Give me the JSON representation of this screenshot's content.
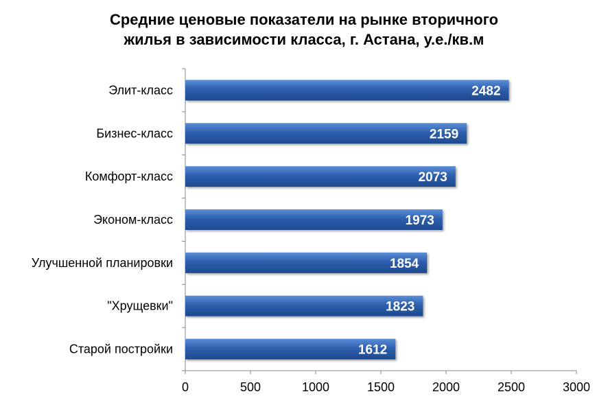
{
  "chart_data": {
    "type": "bar",
    "orientation": "horizontal",
    "title_lines": [
      "Средние ценовые показатели на рынке вторичного",
      "жилья в зависимости класса, г. Астана, у.е./кв.м"
    ],
    "categories": [
      "Элит-класс",
      "Бизнес-класс",
      "Комфорт-класс",
      "Эконом-класс",
      "Улучшенной планировки",
      "\"Хрущевки\"",
      "Старой постройки"
    ],
    "values": [
      2482,
      2159,
      2073,
      1973,
      1854,
      1823,
      1612
    ],
    "data_labels": [
      "2482",
      "2159",
      "2073",
      "1973",
      "1854",
      "1823",
      "1612"
    ],
    "xlim": [
      0,
      3000
    ],
    "x_ticks": [
      0,
      500,
      1000,
      1500,
      2000,
      2500,
      3000
    ],
    "x_tick_labels": [
      "0",
      "500",
      "1000",
      "1500",
      "2000",
      "2500",
      "3000"
    ],
    "xlabel": "",
    "ylabel": "",
    "grid": false,
    "legend": "none",
    "bar_color": "#2E5FAD",
    "bar_color_light": "#5B8FD8",
    "bar_color_dark": "#1E4A8F",
    "axis_color": "#888888",
    "label_color": "#000000",
    "data_label_color": "#ffffff"
  }
}
